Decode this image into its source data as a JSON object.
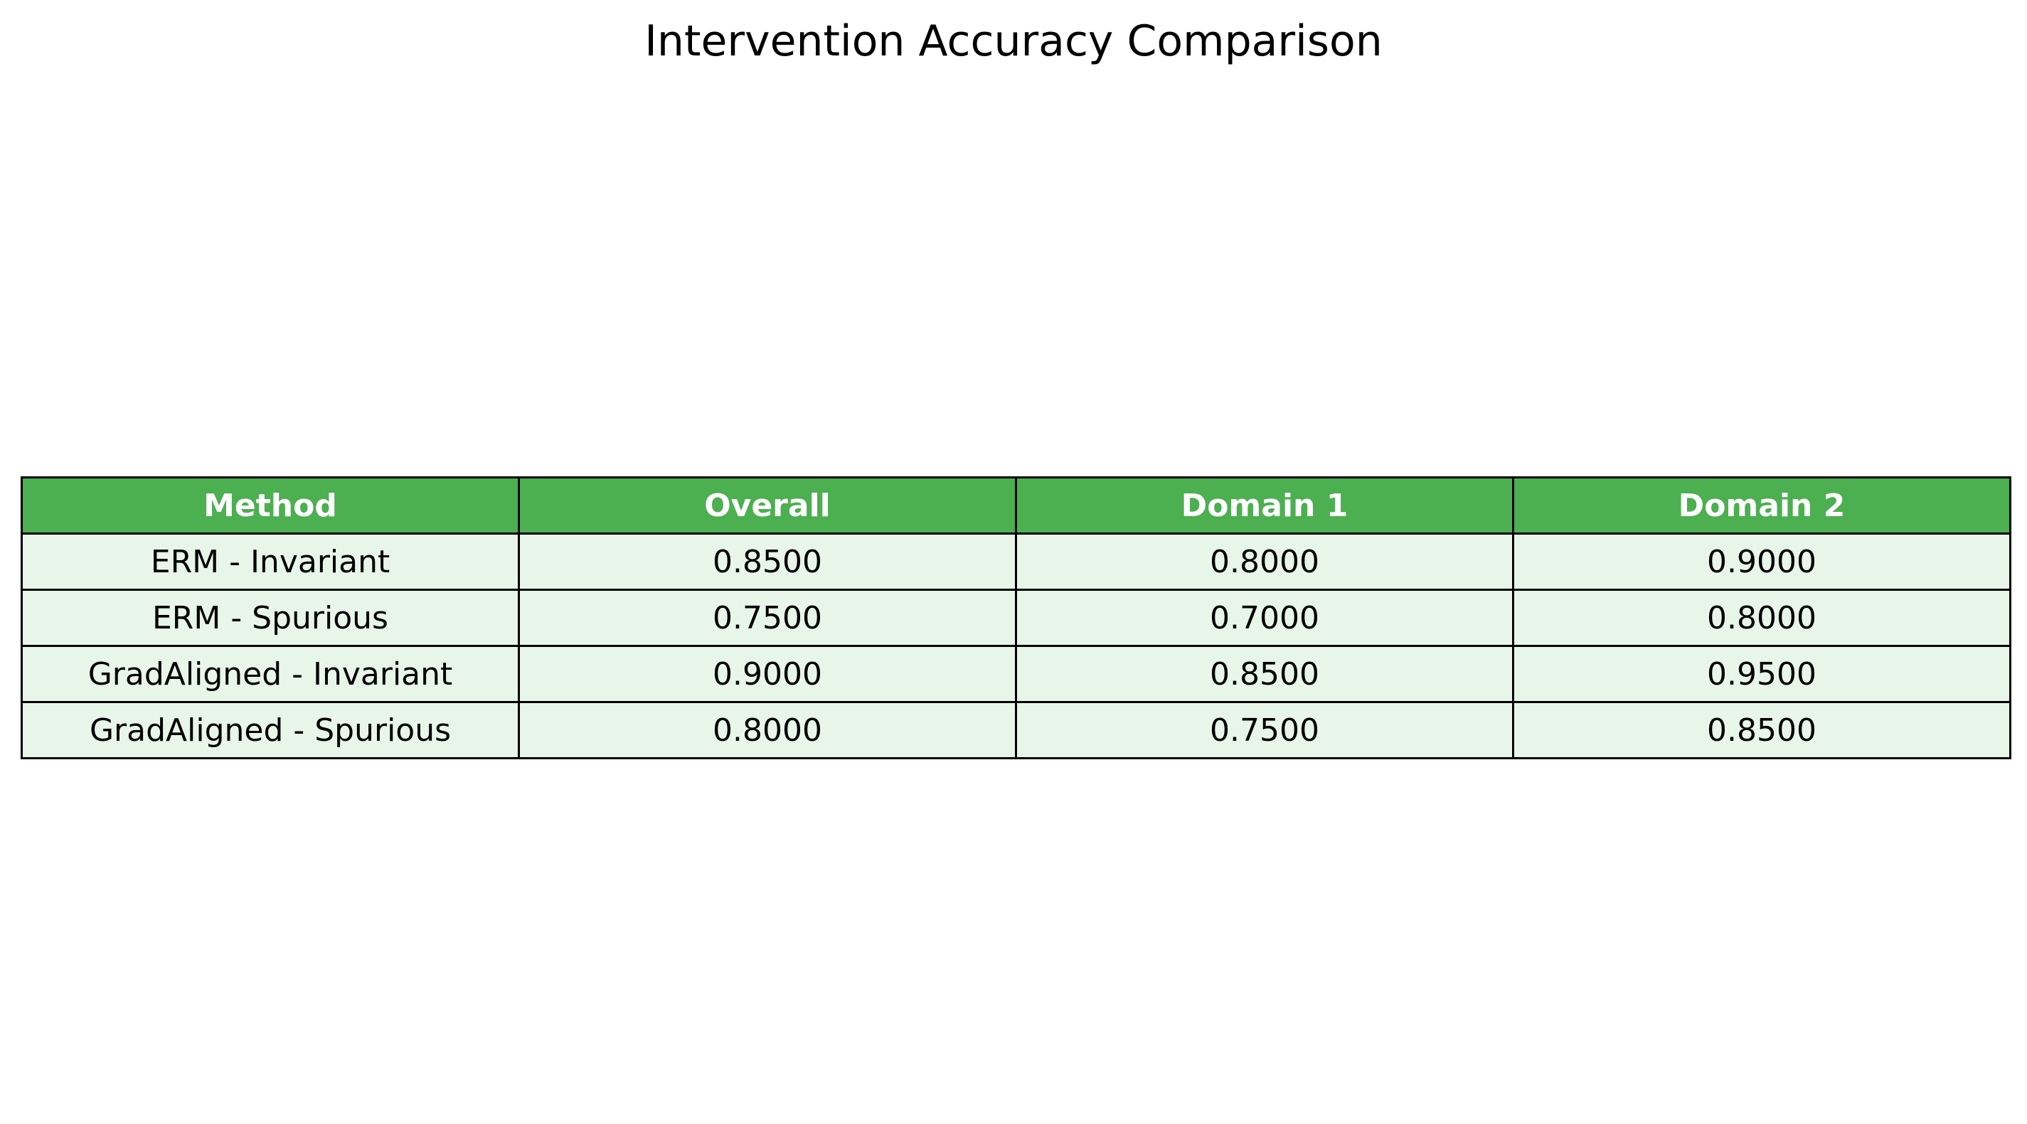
{
  "chart_data": {
    "type": "table",
    "title": "Intervention Accuracy Comparison",
    "columns": [
      "Method",
      "Overall",
      "Domain 1",
      "Domain 2"
    ],
    "rows": [
      [
        "ERM - Invariant",
        "0.8500",
        "0.8000",
        "0.9000"
      ],
      [
        "ERM - Spurious",
        "0.7500",
        "0.7000",
        "0.8000"
      ],
      [
        "GradAligned - Invariant",
        "0.9000",
        "0.8500",
        "0.9500"
      ],
      [
        "GradAligned - Spurious",
        "0.8000",
        "0.7500",
        "0.8500"
      ]
    ]
  },
  "colors": {
    "header_background": "#4CAF50",
    "header_text": "#FFFFFF",
    "cell_background": "#E8F5E9",
    "border": "#000000"
  }
}
